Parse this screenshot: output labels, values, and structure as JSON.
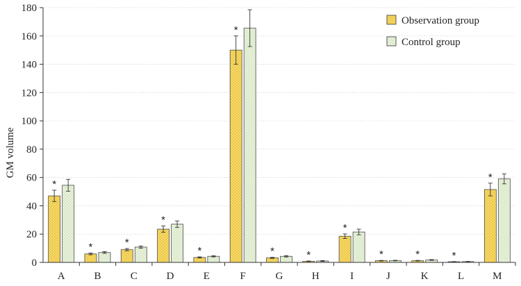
{
  "chart_data": {
    "type": "bar",
    "title": "",
    "xlabel": "",
    "ylabel": "GM volume",
    "ylim": [
      0,
      180
    ],
    "yticks": [
      0,
      20,
      40,
      60,
      80,
      100,
      120,
      140,
      160,
      180
    ],
    "categories": [
      "A",
      "B",
      "C",
      "D",
      "E",
      "F",
      "G",
      "H",
      "I",
      "J",
      "K",
      "L",
      "M"
    ],
    "series": [
      {
        "name": "Observation group",
        "color": "#f5d55a",
        "values": [
          47,
          6,
          9,
          23.5,
          3.5,
          150,
          3.2,
          0.8,
          18.5,
          1.2,
          1.2,
          0.5,
          51.5
        ],
        "errors": [
          4,
          0.6,
          0.8,
          2.2,
          0.4,
          10,
          0.4,
          0.2,
          1.6,
          0.2,
          0.2,
          0.1,
          4.5
        ],
        "significant": [
          true,
          true,
          true,
          true,
          true,
          true,
          true,
          true,
          true,
          true,
          true,
          true,
          true
        ]
      },
      {
        "name": "Control group",
        "color": "#e3efd2",
        "values": [
          54.5,
          7,
          10.8,
          27,
          4.3,
          165.5,
          4.3,
          1,
          21.5,
          1.3,
          1.7,
          0.6,
          59
        ],
        "errors": [
          4.2,
          0.6,
          0.8,
          2.3,
          0.4,
          13,
          0.5,
          0.3,
          2,
          0.2,
          0.3,
          0.1,
          3.5
        ],
        "significant": [
          false,
          false,
          false,
          false,
          false,
          false,
          false,
          false,
          false,
          false,
          false,
          false,
          false
        ]
      }
    ],
    "significance_marker": "*",
    "legend_position": "top-right",
    "grid": true
  }
}
